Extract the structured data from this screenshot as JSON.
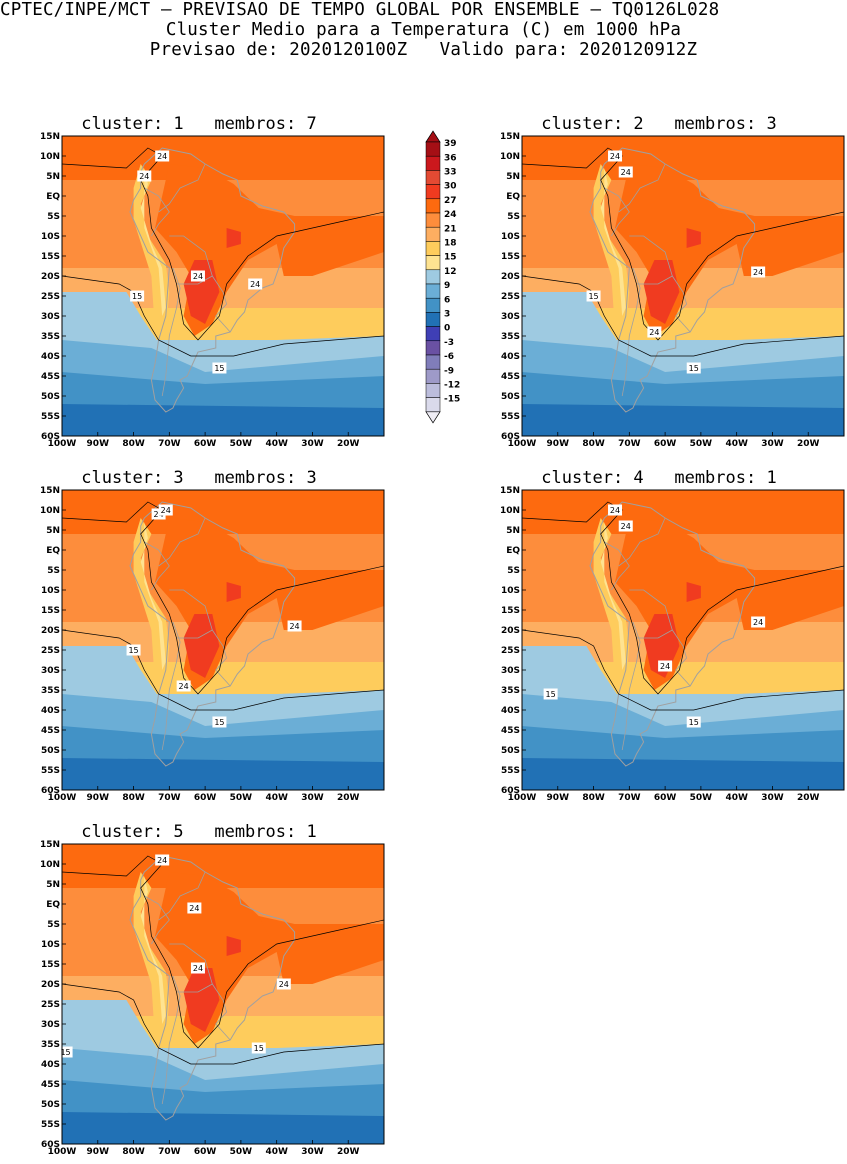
{
  "header": {
    "line1": "CPTEC/INPE/MCT – PREVISAO DE TEMPO GLOBAL POR ENSEMBLE – TQ0126L028",
    "line2": "Cluster Medio para a Temperatura (C) em 1000 hPa",
    "line3": "Previsao de: 2020120100Z   Valido para: 2020120912Z"
  },
  "legend": {
    "labels": [
      "39",
      "36",
      "33",
      "30",
      "27",
      "24",
      "21",
      "18",
      "15",
      "12",
      "9",
      "6",
      "3",
      "0",
      "-3",
      "-6",
      "-9",
      "-12",
      "-15"
    ],
    "colors": [
      "#a50f15",
      "#cb181d",
      "#e34a33",
      "#f03b20",
      "#fd6a0f",
      "#fd8d3c",
      "#fdae61",
      "#fecc5c",
      "#fee391",
      "#9ecae1",
      "#6baed6",
      "#4292c6",
      "#2171b5",
      "#3f3fb5",
      "#6a51a3",
      "#807dba",
      "#9e9ac8",
      "#bcbddc",
      "#dadaeb",
      "#efedf5"
    ]
  },
  "axes": {
    "lat_labels": [
      "15N",
      "10N",
      "5N",
      "EQ",
      "5S",
      "10S",
      "15S",
      "20S",
      "25S",
      "30S",
      "35S",
      "40S",
      "45S",
      "50S",
      "55S",
      "60S"
    ],
    "lon_labels": [
      "100W",
      "90W",
      "80W",
      "70W",
      "60W",
      "50W",
      "40W",
      "30W",
      "20W"
    ]
  },
  "panels": [
    {
      "title": "cluster: 1   membros: 7",
      "labels": [
        {
          "text": "24",
          "lon": -72,
          "lat": 10
        },
        {
          "text": "24",
          "lon": -77,
          "lat": 5
        },
        {
          "text": "24",
          "lon": -62,
          "lat": -20
        },
        {
          "text": "24",
          "lon": -46,
          "lat": -22
        },
        {
          "text": "15",
          "lon": -79,
          "lat": -25
        },
        {
          "text": "15",
          "lon": -56,
          "lat": -43
        }
      ]
    },
    {
      "title": "cluster: 2   membros: 3",
      "labels": [
        {
          "text": "24",
          "lon": -74,
          "lat": 10
        },
        {
          "text": "24",
          "lon": -71,
          "lat": 6
        },
        {
          "text": "24",
          "lon": -34,
          "lat": -19
        },
        {
          "text": "24",
          "lon": -63,
          "lat": -34
        },
        {
          "text": "15",
          "lon": -80,
          "lat": -25
        },
        {
          "text": "15",
          "lon": -52,
          "lat": -43
        }
      ]
    },
    {
      "title": "cluster: 3   membros: 3",
      "labels": [
        {
          "text": "24",
          "lon": -73,
          "lat": 9
        },
        {
          "text": "24",
          "lon": -71,
          "lat": 10
        },
        {
          "text": "24",
          "lon": -35,
          "lat": -19
        },
        {
          "text": "24",
          "lon": -66,
          "lat": -34
        },
        {
          "text": "15",
          "lon": -80,
          "lat": -25
        },
        {
          "text": "15",
          "lon": -56,
          "lat": -43
        }
      ]
    },
    {
      "title": "cluster: 4   membros: 1",
      "labels": [
        {
          "text": "24",
          "lon": -74,
          "lat": 10
        },
        {
          "text": "24",
          "lon": -71,
          "lat": 6
        },
        {
          "text": "24",
          "lon": -34,
          "lat": -18
        },
        {
          "text": "24",
          "lon": -60,
          "lat": -29
        },
        {
          "text": "15",
          "lon": -92,
          "lat": -36
        },
        {
          "text": "15",
          "lon": -52,
          "lat": -43
        }
      ]
    },
    {
      "title": "cluster: 5   membros: 1",
      "labels": [
        {
          "text": "24",
          "lon": -72,
          "lat": 11
        },
        {
          "text": "24",
          "lon": -63,
          "lat": -1
        },
        {
          "text": "24",
          "lon": -62,
          "lat": -16
        },
        {
          "text": "24",
          "lon": -38,
          "lat": -20
        },
        {
          "text": "15",
          "lon": -99,
          "lat": -37
        },
        {
          "text": "15",
          "lon": -45,
          "lat": -36
        }
      ]
    }
  ]
}
